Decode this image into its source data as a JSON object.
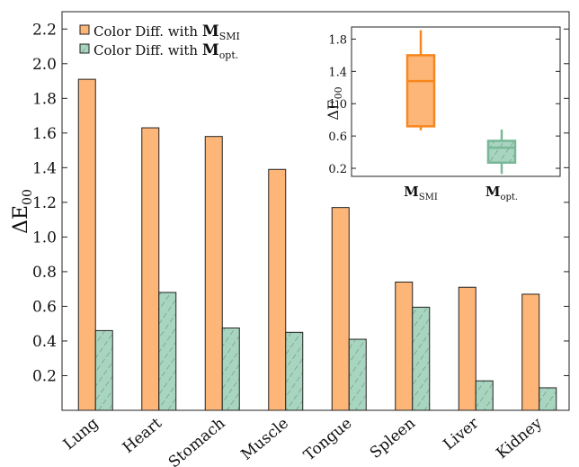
{
  "chart_data": {
    "type": "bar",
    "ylabel": "ΔE00",
    "ylabel_main": "ΔE",
    "ylabel_sub": "00",
    "ylim": [
      0,
      2.3
    ],
    "yticks": [
      "0.2",
      "0.4",
      "0.6",
      "0.8",
      "1.0",
      "1.2",
      "1.4",
      "1.6",
      "1.8",
      "2.0",
      "2.2"
    ],
    "categories": [
      "Lung",
      "Heart",
      "Stomach",
      "Muscle",
      "Tongue",
      "Spleen",
      "Liver",
      "Kidney"
    ],
    "series": [
      {
        "name": "Color Diff. with MSMI",
        "legend_prefix": "Color Diff.  with ",
        "legend_bold": "M",
        "legend_sub": "SMI",
        "color": "#FDB678",
        "pattern": "solid",
        "values": [
          1.91,
          1.63,
          1.58,
          1.39,
          1.17,
          0.74,
          0.71,
          0.67
        ]
      },
      {
        "name": "Color Diff. with Mopt.",
        "legend_prefix": "Color Diff.  with ",
        "legend_bold": "M",
        "legend_sub": "opt.",
        "color": "#A8D5BF",
        "pattern": "hatched",
        "values": [
          0.46,
          0.68,
          0.475,
          0.45,
          0.41,
          0.595,
          0.17,
          0.13
        ]
      }
    ],
    "legend_position": "top-left",
    "grid": false,
    "inset": {
      "type": "boxplot",
      "ylabel": "ΔE00",
      "ylabel_main": "ΔE",
      "ylabel_sub": "00",
      "ylim": [
        0.1,
        1.95
      ],
      "yticks": [
        "0.2",
        "0.6",
        "1.0",
        "1.4",
        "1.8"
      ],
      "boxes": [
        {
          "label": "MSMI",
          "label_bold": "M",
          "label_sub": "SMI",
          "color": "#F7861E",
          "fill": "#FDB678",
          "whisker_low": 0.67,
          "q1": 0.72,
          "median": 1.28,
          "q3": 1.6,
          "whisker_high": 1.91
        },
        {
          "label": "Mopt.",
          "label_bold": "M",
          "label_sub": "opt.",
          "color": "#78B898",
          "fill": "#A8D5BF",
          "whisker_low": 0.13,
          "q1": 0.27,
          "median": 0.455,
          "q3": 0.54,
          "whisker_high": 0.68
        }
      ]
    }
  }
}
